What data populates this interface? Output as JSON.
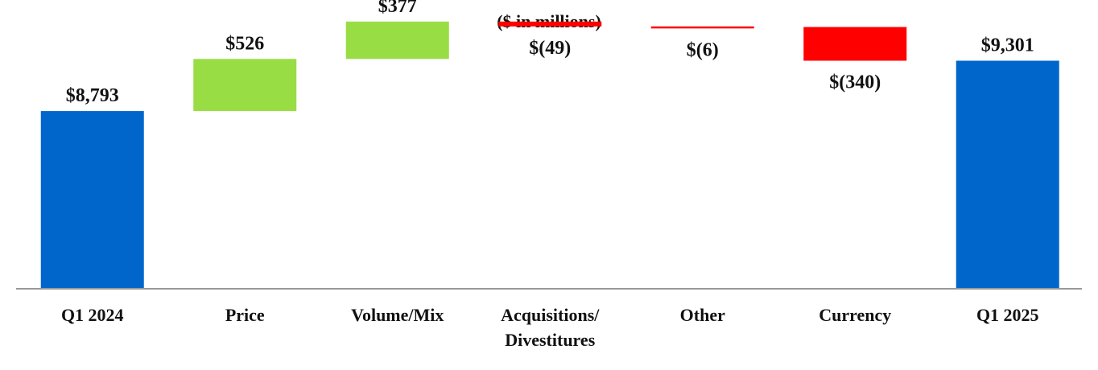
{
  "chart_data": {
    "type": "bar",
    "subtype": "waterfall",
    "title": "($ in millions)",
    "xlabel": "",
    "ylabel": "",
    "categories": [
      "Q1 2024",
      "Price",
      "Volume/Mix",
      "Acquisitions/\nDivestitures",
      "Other",
      "Currency",
      "Q1 2025"
    ],
    "values": [
      8793,
      526,
      377,
      -49,
      -6,
      -340,
      9301
    ],
    "kinds": [
      "total",
      "delta",
      "delta",
      "delta",
      "delta",
      "delta",
      "total"
    ],
    "data_labels": [
      "$8,793",
      "$526",
      "$377",
      "$(49)",
      "$(6)",
      "$(340)",
      "$9,301"
    ],
    "ylim": [
      7000,
      9800
    ],
    "grid": false,
    "legend": "none",
    "colors": {
      "total": "#0066CC",
      "increase": "#99DD44",
      "decrease": "#FF0000",
      "axis": "#999999"
    }
  }
}
